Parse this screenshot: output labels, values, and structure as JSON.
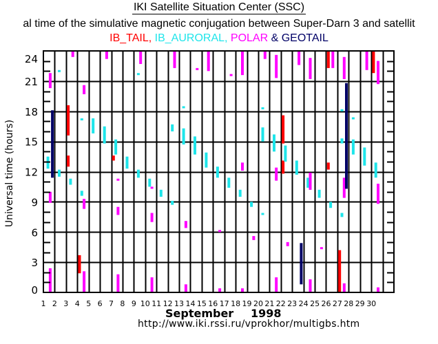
{
  "header": {
    "title": "IKI Satellite Situation Center (SSC)",
    "subtitle": "al time of the simulative magnetic conjugation between Super-Darn 3 and satellit",
    "legend_parts": [
      {
        "text": "IB_TAIL, ",
        "color": "#ff0000"
      },
      {
        "text": "IB_AURORAL, ",
        "color": "#1ee5ea"
      },
      {
        "text": "POLAR ",
        "color": "#ff00ff"
      },
      {
        "text": "& GEOTAIL",
        "color": "#000066"
      }
    ]
  },
  "footer": {
    "month": "September",
    "year": "1998",
    "url": "http://www.iki.rssi.ru/vprokhor/multigbs.htm"
  },
  "chart_data": {
    "type": "bar",
    "title": "IKI Satellite Situation Center (SSC)",
    "subtitle": "al time of the simulative magnetic conjugation between Super-Darn 3 and satellit",
    "xlabel": "September 1998",
    "ylabel": "Universal time (hours)",
    "xlim": [
      1,
      32
    ],
    "ylim": [
      0,
      24
    ],
    "x_ticks": [
      1,
      2,
      3,
      4,
      5,
      6,
      7,
      8,
      9,
      10,
      11,
      12,
      13,
      14,
      15,
      16,
      17,
      18,
      19,
      20,
      21,
      22,
      23,
      24,
      25,
      26,
      27,
      28,
      29,
      30
    ],
    "y_ticks": [
      0,
      3,
      6,
      9,
      12,
      15,
      18,
      21,
      24
    ],
    "grid": true,
    "legend": "top",
    "series": [
      {
        "name": "IB_TAIL",
        "color": "#ff0000",
        "intervals": [
          {
            "day": 3.2,
            "start": 15.6,
            "end": 18.6
          },
          {
            "day": 3.2,
            "start": 12.5,
            "end": 13.6
          },
          {
            "day": 4.2,
            "start": 1.9,
            "end": 3.7
          },
          {
            "day": 7.2,
            "start": 13.1,
            "end": 13.6
          },
          {
            "day": 22.2,
            "start": 14.8,
            "end": 17.6
          },
          {
            "day": 22.2,
            "start": 11.8,
            "end": 13.1
          },
          {
            "day": 26.2,
            "start": 22.3,
            "end": 24.0
          },
          {
            "day": 26.2,
            "start": 12.2,
            "end": 12.9
          },
          {
            "day": 27.2,
            "start": 0.0,
            "end": 4.2
          },
          {
            "day": 30.2,
            "start": 21.8,
            "end": 24.0
          }
        ]
      },
      {
        "name": "IB_AURORAL",
        "color": "#1ee5ea",
        "intervals": [
          {
            "day": 1.4,
            "start": 12.3,
            "end": 13.5
          },
          {
            "day": 2.4,
            "start": 21.9,
            "end": 22.1
          },
          {
            "day": 2.4,
            "start": 11.5,
            "end": 12.2
          },
          {
            "day": 3.4,
            "start": 10.7,
            "end": 11.3
          },
          {
            "day": 4.4,
            "start": 17.1,
            "end": 17.3
          },
          {
            "day": 4.4,
            "start": 9.6,
            "end": 10.1
          },
          {
            "day": 5.4,
            "start": 15.8,
            "end": 17.3
          },
          {
            "day": 6.4,
            "start": 14.8,
            "end": 16.5
          },
          {
            "day": 7.4,
            "start": 13.7,
            "end": 15.2
          },
          {
            "day": 8.4,
            "start": 12.3,
            "end": 13.5
          },
          {
            "day": 9.4,
            "start": 21.6,
            "end": 21.8
          },
          {
            "day": 9.4,
            "start": 11.4,
            "end": 12.2
          },
          {
            "day": 10.4,
            "start": 10.5,
            "end": 11.3
          },
          {
            "day": 11.4,
            "start": 9.5,
            "end": 10.2
          },
          {
            "day": 12.4,
            "start": 16.0,
            "end": 16.7
          },
          {
            "day": 12.4,
            "start": 8.7,
            "end": 9.1
          },
          {
            "day": 13.4,
            "start": 18.3,
            "end": 18.5
          },
          {
            "day": 13.4,
            "start": 14.7,
            "end": 16.3
          },
          {
            "day": 14.4,
            "start": 13.7,
            "end": 15.5
          },
          {
            "day": 15.4,
            "start": 12.4,
            "end": 13.9
          },
          {
            "day": 16.4,
            "start": 11.4,
            "end": 12.5
          },
          {
            "day": 17.4,
            "start": 10.4,
            "end": 11.4
          },
          {
            "day": 18.4,
            "start": 9.5,
            "end": 10.2
          },
          {
            "day": 19.4,
            "start": 8.5,
            "end": 9.0
          },
          {
            "day": 20.4,
            "start": 18.2,
            "end": 18.4
          },
          {
            "day": 20.4,
            "start": 15.0,
            "end": 16.4
          },
          {
            "day": 20.4,
            "start": 7.7,
            "end": 7.9
          },
          {
            "day": 21.4,
            "start": 14.0,
            "end": 15.7
          },
          {
            "day": 22.4,
            "start": 13.0,
            "end": 14.6
          },
          {
            "day": 23.4,
            "start": 11.7,
            "end": 13.1
          },
          {
            "day": 24.4,
            "start": 10.4,
            "end": 11.4
          },
          {
            "day": 25.4,
            "start": 9.4,
            "end": 10.2
          },
          {
            "day": 26.4,
            "start": 8.4,
            "end": 9.0
          },
          {
            "day": 27.4,
            "start": 18.0,
            "end": 18.2
          },
          {
            "day": 27.4,
            "start": 14.8,
            "end": 15.3
          },
          {
            "day": 27.4,
            "start": 7.5,
            "end": 7.9
          },
          {
            "day": 28.4,
            "start": 17.2,
            "end": 17.4
          },
          {
            "day": 28.4,
            "start": 13.7,
            "end": 15.2
          },
          {
            "day": 29.4,
            "start": 12.6,
            "end": 14.4
          },
          {
            "day": 30.4,
            "start": 11.4,
            "end": 12.9
          }
        ]
      },
      {
        "name": "POLAR",
        "color": "#ff00ff",
        "intervals": [
          {
            "day": 1.6,
            "start": 20.3,
            "end": 21.8
          },
          {
            "day": 1.6,
            "start": 8.9,
            "end": 10.0
          },
          {
            "day": 1.6,
            "start": 0.0,
            "end": 2.4
          },
          {
            "day": 3.6,
            "start": 23.4,
            "end": 24.0
          },
          {
            "day": 4.6,
            "start": 19.7,
            "end": 20.6
          },
          {
            "day": 4.6,
            "start": 8.3,
            "end": 9.3
          },
          {
            "day": 4.6,
            "start": 0.0,
            "end": 2.1
          },
          {
            "day": 6.6,
            "start": 23.2,
            "end": 24.0
          },
          {
            "day": 7.6,
            "start": 11.1,
            "end": 11.3
          },
          {
            "day": 7.6,
            "start": 7.7,
            "end": 8.5
          },
          {
            "day": 7.6,
            "start": 0.0,
            "end": 1.8
          },
          {
            "day": 9.6,
            "start": 22.7,
            "end": 24.0
          },
          {
            "day": 10.6,
            "start": 10.3,
            "end": 10.5
          },
          {
            "day": 10.6,
            "start": 7.0,
            "end": 7.9
          },
          {
            "day": 10.6,
            "start": 0.0,
            "end": 1.5
          },
          {
            "day": 12.6,
            "start": 22.3,
            "end": 24.0
          },
          {
            "day": 13.6,
            "start": 6.4,
            "end": 7.1
          },
          {
            "day": 13.6,
            "start": 0.0,
            "end": 0.8
          },
          {
            "day": 14.6,
            "start": 22.1,
            "end": 22.3
          },
          {
            "day": 15.6,
            "start": 22.0,
            "end": 24.0
          },
          {
            "day": 16.6,
            "start": 6.0,
            "end": 6.2
          },
          {
            "day": 16.6,
            "start": 0.0,
            "end": 0.4
          },
          {
            "day": 17.6,
            "start": 21.5,
            "end": 21.7
          },
          {
            "day": 18.6,
            "start": 21.6,
            "end": 24.0
          },
          {
            "day": 18.6,
            "start": 12.1,
            "end": 12.9
          },
          {
            "day": 18.6,
            "start": 0.0,
            "end": 0.4
          },
          {
            "day": 19.6,
            "start": 5.2,
            "end": 5.6
          },
          {
            "day": 20.6,
            "start": 23.2,
            "end": 24.0
          },
          {
            "day": 21.6,
            "start": 21.3,
            "end": 23.6
          },
          {
            "day": 21.6,
            "start": 11.1,
            "end": 12.4
          },
          {
            "day": 21.6,
            "start": 0.0,
            "end": 1.5
          },
          {
            "day": 22.6,
            "start": 4.6,
            "end": 5.0
          },
          {
            "day": 23.6,
            "start": 22.6,
            "end": 24.0
          },
          {
            "day": 24.6,
            "start": 21.2,
            "end": 23.3
          },
          {
            "day": 24.6,
            "start": 10.2,
            "end": 11.9
          },
          {
            "day": 24.6,
            "start": 0.0,
            "end": 1.3
          },
          {
            "day": 25.6,
            "start": 4.3,
            "end": 4.5
          },
          {
            "day": 26.6,
            "start": 22.3,
            "end": 24.0
          },
          {
            "day": 27.6,
            "start": 21.2,
            "end": 23.4
          },
          {
            "day": 27.6,
            "start": 9.4,
            "end": 11.4
          },
          {
            "day": 27.6,
            "start": 0.0,
            "end": 0.9
          },
          {
            "day": 29.6,
            "start": 22.1,
            "end": 24.0
          },
          {
            "day": 30.6,
            "start": 20.7,
            "end": 23.0
          },
          {
            "day": 30.6,
            "start": 8.8,
            "end": 10.8
          },
          {
            "day": 30.6,
            "start": 0.0,
            "end": 0.5
          }
        ]
      },
      {
        "name": "GEOTAIL",
        "color": "#000066",
        "intervals": [
          {
            "day": 1.8,
            "start": 11.4,
            "end": 18.1
          },
          {
            "day": 23.8,
            "start": 0.8,
            "end": 4.9
          },
          {
            "day": 27.8,
            "start": 10.3,
            "end": 20.8
          }
        ]
      }
    ]
  }
}
